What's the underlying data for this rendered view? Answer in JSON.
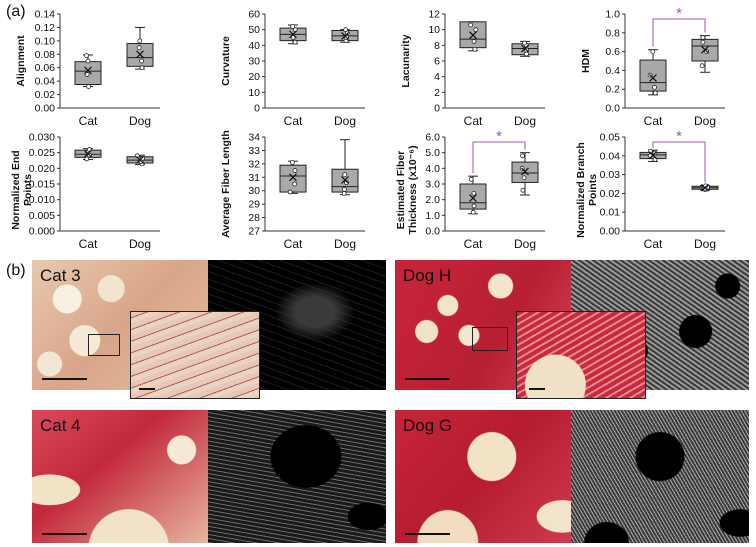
{
  "panel_a_letter": "(a)",
  "panel_b_letter": "(b)",
  "chart_data": [
    {
      "type": "box",
      "ylabel": "Alignment",
      "categories": [
        "Cat",
        "Dog"
      ],
      "ylim": [
        0,
        0.14
      ],
      "yticks": [
        "0.00",
        "0.02",
        "0.04",
        "0.06",
        "0.08",
        "0.10",
        "0.12",
        "0.14"
      ],
      "series": [
        {
          "q1": 0.035,
          "median": 0.055,
          "q3": 0.069,
          "min": 0.032,
          "max": 0.079,
          "mean": 0.056,
          "points": [
            0.032,
            0.05,
            0.07,
            0.078
          ]
        },
        {
          "q1": 0.062,
          "median": 0.075,
          "q3": 0.096,
          "min": 0.058,
          "max": 0.12,
          "mean": 0.08,
          "points": [
            0.06,
            0.07,
            0.09,
            0.1
          ]
        }
      ],
      "significant": false
    },
    {
      "type": "box",
      "ylabel": "Curvature",
      "categories": [
        "Cat",
        "Dog"
      ],
      "ylim": [
        0,
        60
      ],
      "yticks": [
        "0",
        "10",
        "20",
        "30",
        "40",
        "50",
        "60"
      ],
      "series": [
        {
          "q1": 43,
          "median": 47,
          "q3": 51,
          "min": 41,
          "max": 53,
          "mean": 47,
          "points": [
            42,
            45,
            50,
            52
          ]
        },
        {
          "q1": 43,
          "median": 46,
          "q3": 49.5,
          "min": 42,
          "max": 50,
          "mean": 46,
          "points": [
            43,
            45,
            48,
            50
          ]
        }
      ],
      "significant": false
    },
    {
      "type": "box",
      "ylabel": "Lacunarity",
      "categories": [
        "Cat",
        "Dog"
      ],
      "ylim": [
        0,
        12
      ],
      "yticks": [
        "0",
        "2",
        "4",
        "6",
        "8",
        "10",
        "12"
      ],
      "series": [
        {
          "q1": 7.7,
          "median": 8.8,
          "q3": 11,
          "min": 7.3,
          "max": 11,
          "mean": 9.3,
          "points": [
            7.5,
            8.5,
            10,
            10.6
          ]
        },
        {
          "q1": 6.8,
          "median": 7.6,
          "q3": 8.2,
          "min": 6.6,
          "max": 8.5,
          "mean": 7.6,
          "points": [
            6.9,
            7.4,
            8,
            8.3
          ]
        }
      ],
      "significant": false
    },
    {
      "type": "box",
      "ylabel": "HDM",
      "categories": [
        "Cat",
        "Dog"
      ],
      "ylim": [
        0,
        1
      ],
      "yticks": [
        "0.0",
        "0.2",
        "0.4",
        "0.6",
        "0.8",
        "1.0"
      ],
      "series": [
        {
          "q1": 0.18,
          "median": 0.27,
          "q3": 0.51,
          "min": 0.14,
          "max": 0.62,
          "mean": 0.32,
          "points": [
            0.16,
            0.22,
            0.35,
            0.6
          ]
        },
        {
          "q1": 0.5,
          "median": 0.66,
          "q3": 0.73,
          "min": 0.38,
          "max": 0.77,
          "mean": 0.62,
          "points": [
            0.45,
            0.6,
            0.7,
            0.75
          ]
        }
      ],
      "significant": true
    },
    {
      "type": "box",
      "ylabel": "Normalized End Points",
      "categories": [
        "Cat",
        "Dog"
      ],
      "ylim": [
        0,
        0.03
      ],
      "yticks": [
        "0.000",
        "0.005",
        "0.010",
        "0.015",
        "0.020",
        "0.025",
        "0.030"
      ],
      "series": [
        {
          "q1": 0.0235,
          "median": 0.0245,
          "q3": 0.0258,
          "min": 0.0228,
          "max": 0.0263,
          "mean": 0.0247,
          "points": [
            0.023,
            0.0242,
            0.0252,
            0.026
          ]
        },
        {
          "q1": 0.0217,
          "median": 0.0226,
          "q3": 0.0237,
          "min": 0.0212,
          "max": 0.0242,
          "mean": 0.0227,
          "points": [
            0.0214,
            0.0222,
            0.0232,
            0.024
          ]
        }
      ],
      "significant": false
    },
    {
      "type": "box",
      "ylabel": "Average Fiber Length",
      "categories": [
        "Cat",
        "Dog"
      ],
      "ylim": [
        27,
        34
      ],
      "yticks": [
        "27",
        "28",
        "29",
        "30",
        "31",
        "32",
        "33",
        "34"
      ],
      "series": [
        {
          "q1": 29.9,
          "median": 31.1,
          "q3": 31.9,
          "min": 29.8,
          "max": 32.2,
          "mean": 31,
          "points": [
            29.9,
            30.5,
            31.5,
            32.1
          ]
        },
        {
          "q1": 29.9,
          "median": 30.3,
          "q3": 31.6,
          "min": 29.7,
          "max": 33.8,
          "mean": 30.8,
          "points": [
            29.8,
            30.1,
            30.6,
            31.2
          ]
        }
      ],
      "significant": false
    },
    {
      "type": "box",
      "ylabel": "Estimated Fiber Thickness (x10⁻⁶)",
      "categories": [
        "Cat",
        "Dog"
      ],
      "ylim": [
        0,
        6
      ],
      "yticks": [
        "0.0",
        "1.0",
        "2.0",
        "3.0",
        "4.0",
        "5.0",
        "6.0"
      ],
      "series": [
        {
          "q1": 1.4,
          "median": 1.8,
          "q3": 3.0,
          "min": 1.1,
          "max": 3.5,
          "mean": 2.1,
          "points": [
            1.2,
            1.6,
            2.4,
            3.3
          ]
        },
        {
          "q1": 3.1,
          "median": 3.7,
          "q3": 4.4,
          "min": 2.3,
          "max": 5.0,
          "mean": 3.8,
          "points": [
            2.6,
            3.4,
            4.0,
            4.8
          ]
        }
      ],
      "significant": true
    },
    {
      "type": "box",
      "ylabel": "Normalized Branch Points",
      "categories": [
        "Cat",
        "Dog"
      ],
      "ylim": [
        0,
        0.05
      ],
      "yticks": [
        "0.00",
        "0.01",
        "0.02",
        "0.03",
        "0.04",
        "0.05"
      ],
      "series": [
        {
          "q1": 0.0385,
          "median": 0.0405,
          "q3": 0.0418,
          "min": 0.037,
          "max": 0.043,
          "mean": 0.0403,
          "points": [
            0.038,
            0.04,
            0.0415,
            0.0425
          ]
        },
        {
          "q1": 0.0222,
          "median": 0.023,
          "q3": 0.0238,
          "min": 0.0218,
          "max": 0.0242,
          "mean": 0.023,
          "points": [
            0.022,
            0.0227,
            0.0233,
            0.024
          ]
        }
      ],
      "significant": true
    }
  ],
  "significance_marker": "*",
  "colors": {
    "box_fill": "#a9a9a9",
    "sig": "#9b59b6",
    "stain_red": "#c8243a",
    "stain_pale": "#f0d9bd",
    "fiber_white": "#e8e8e8"
  },
  "micrographs": [
    {
      "label": "Cat 3",
      "name": "cat-3"
    },
    {
      "label": "Dog H",
      "name": "dog-h"
    },
    {
      "label": "Cat 4",
      "name": "cat-4"
    },
    {
      "label": "Dog G",
      "name": "dog-g"
    }
  ]
}
